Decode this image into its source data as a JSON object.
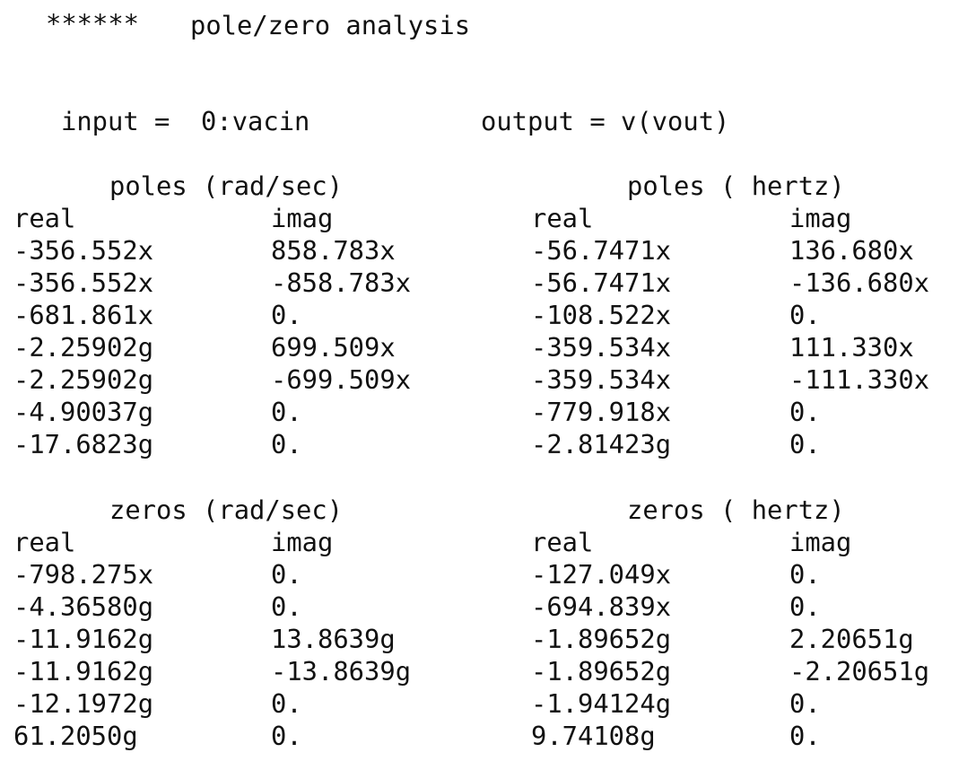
{
  "header": {
    "stars": "******",
    "title": "pole/zero analysis"
  },
  "io": {
    "input": "input =  0:vacin",
    "output": "output = v(vout)"
  },
  "poles": {
    "rad_title": "poles (rad/sec)",
    "hz_title": "poles ( hertz)",
    "col_real": "real",
    "col_imag": "imag",
    "rows": [
      {
        "rad_real": "-356.552x",
        "rad_imag": "858.783x",
        "hz_real": "-56.7471x",
        "hz_imag": "136.680x"
      },
      {
        "rad_real": "-356.552x",
        "rad_imag": "-858.783x",
        "hz_real": "-56.7471x",
        "hz_imag": "-136.680x"
      },
      {
        "rad_real": "-681.861x",
        "rad_imag": "0.",
        "hz_real": "-108.522x",
        "hz_imag": "0."
      },
      {
        "rad_real": "-2.25902g",
        "rad_imag": "699.509x",
        "hz_real": "-359.534x",
        "hz_imag": "111.330x"
      },
      {
        "rad_real": "-2.25902g",
        "rad_imag": "-699.509x",
        "hz_real": "-359.534x",
        "hz_imag": "-111.330x"
      },
      {
        "rad_real": "-4.90037g",
        "rad_imag": "0.",
        "hz_real": "-779.918x",
        "hz_imag": "0."
      },
      {
        "rad_real": "-17.6823g",
        "rad_imag": "0.",
        "hz_real": "-2.81423g",
        "hz_imag": "0."
      }
    ]
  },
  "zeros": {
    "rad_title": "zeros (rad/sec)",
    "hz_title": "zeros ( hertz)",
    "col_real": "real",
    "col_imag": "imag",
    "rows": [
      {
        "rad_real": "-798.275x",
        "rad_imag": "0.",
        "hz_real": "-127.049x",
        "hz_imag": "0."
      },
      {
        "rad_real": "-4.36580g",
        "rad_imag": "0.",
        "hz_real": "-694.839x",
        "hz_imag": "0."
      },
      {
        "rad_real": "-11.9162g",
        "rad_imag": "13.8639g",
        "hz_real": "-1.89652g",
        "hz_imag": "2.20651g"
      },
      {
        "rad_real": "-11.9162g",
        "rad_imag": "-13.8639g",
        "hz_real": "-1.89652g",
        "hz_imag": "-2.20651g"
      },
      {
        "rad_real": "-12.1972g",
        "rad_imag": "0.",
        "hz_real": "-1.94124g",
        "hz_imag": "0."
      },
      {
        "rad_real": "61.2050g",
        "rad_imag": "0.",
        "hz_real": "9.74108g",
        "hz_imag": "0."
      }
    ]
  }
}
